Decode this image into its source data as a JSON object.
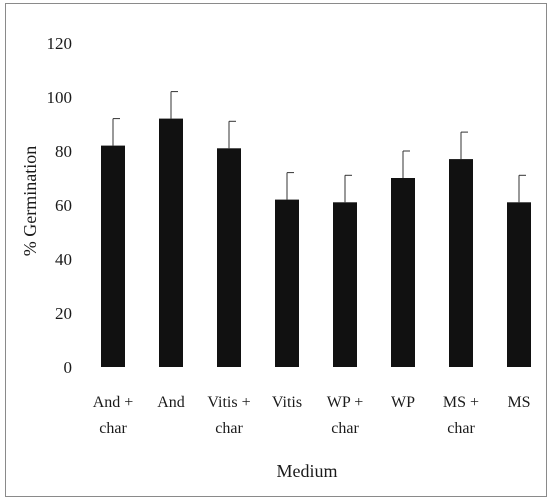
{
  "chart_data": {
    "type": "bar",
    "title": "",
    "xlabel": "Medium",
    "ylabel": "% Germination",
    "ylim": [
      0,
      120
    ],
    "yticks": [
      0,
      20,
      40,
      60,
      80,
      100,
      120
    ],
    "grid": false,
    "legend": "none",
    "categories": [
      [
        "And +",
        "char"
      ],
      [
        "And"
      ],
      [
        "Vitis +",
        "char"
      ],
      [
        "Vitis"
      ],
      [
        "WP +",
        "char"
      ],
      [
        "WP"
      ],
      [
        "MS +",
        "char"
      ],
      [
        "MS"
      ]
    ],
    "values": [
      82,
      92,
      81,
      62,
      61,
      70,
      77,
      61
    ],
    "errors": [
      10,
      10,
      10,
      10,
      10,
      10,
      10,
      10
    ],
    "bar_color": "#111111"
  }
}
